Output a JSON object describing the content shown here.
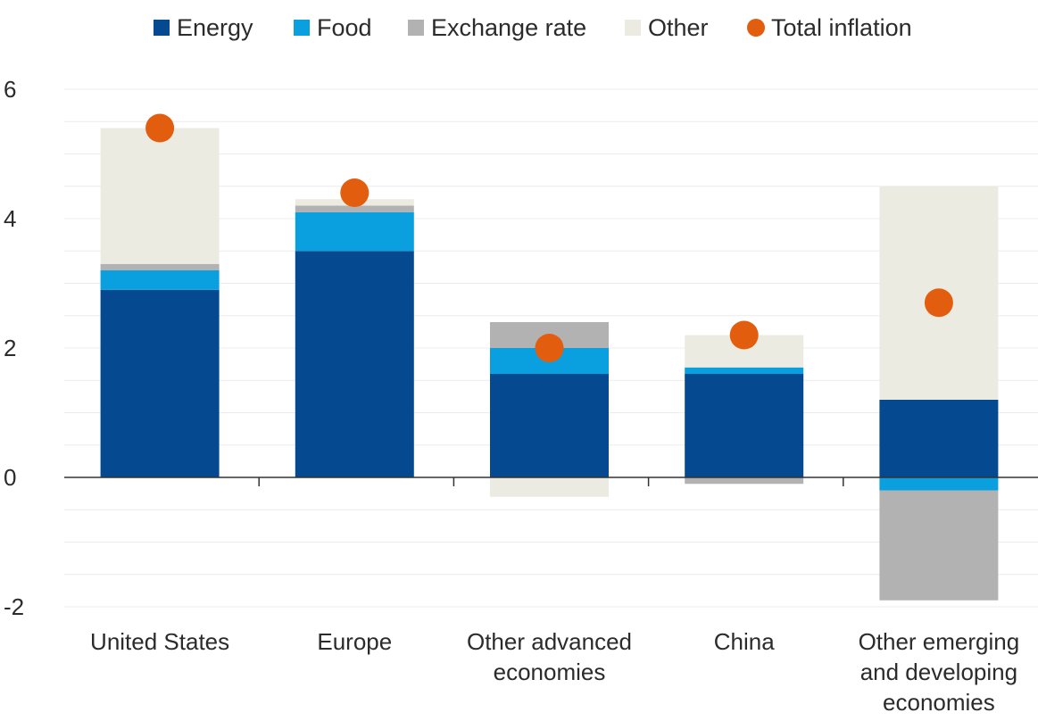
{
  "chart_data": {
    "type": "bar",
    "stacked": true,
    "categories": [
      "United States",
      "Europe",
      "Other advanced economies",
      "China",
      "Other emerging and developing economies"
    ],
    "category_label_lines": [
      [
        "United States"
      ],
      [
        "Europe"
      ],
      [
        "Other advanced",
        "economies"
      ],
      [
        "China"
      ],
      [
        "Other emerging",
        "and developing",
        "economies"
      ]
    ],
    "series": [
      {
        "name": "Energy",
        "color": "#054a91",
        "values": [
          2.9,
          3.5,
          1.6,
          1.6,
          1.2
        ]
      },
      {
        "name": "Food",
        "color": "#0aa0e0",
        "values": [
          0.3,
          0.6,
          0.4,
          0.1,
          -0.2
        ]
      },
      {
        "name": "Exchange rate",
        "color": "#b2b2b2",
        "values": [
          0.1,
          0.1,
          0.4,
          -0.1,
          -1.7
        ]
      },
      {
        "name": "Other",
        "color": "#ecebe1",
        "values": [
          2.1,
          0.1,
          -0.3,
          0.5,
          3.3
        ]
      }
    ],
    "markers": {
      "name": "Total inflation",
      "color": "#e35d0f",
      "values": [
        5.4,
        4.4,
        2.0,
        2.2,
        2.7
      ]
    },
    "yticks": [
      6,
      4,
      2,
      0,
      -2
    ],
    "ylim": [
      -2,
      6
    ],
    "grid": true,
    "legend_position": "top"
  }
}
